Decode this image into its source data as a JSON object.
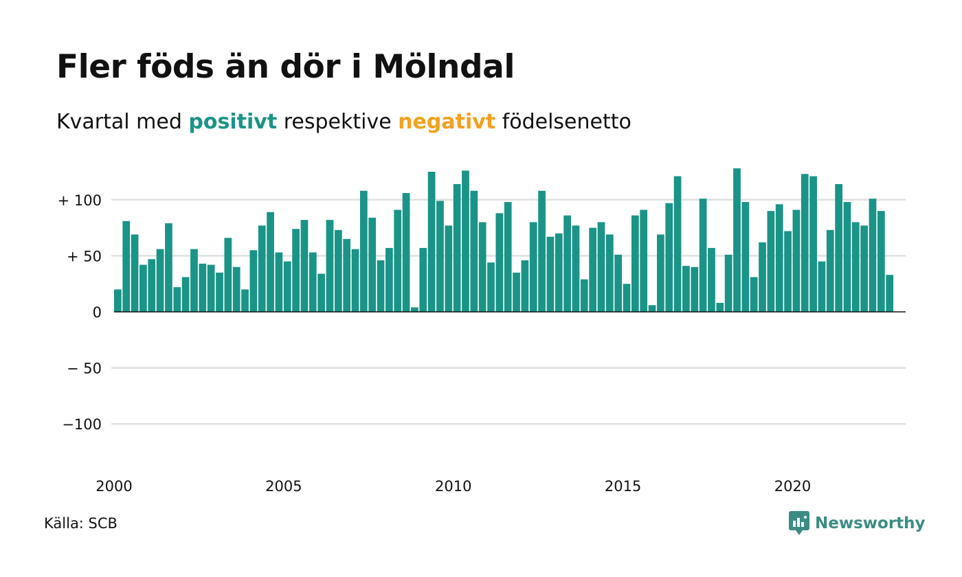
{
  "title": "Fler föds än dör i Mölndal",
  "subtitle": {
    "prefix": "Kvartal med ",
    "positive": "positivt",
    "middle": " respektive ",
    "negative": "negativt",
    "suffix": " födelsenetto"
  },
  "source": "Källa: SCB",
  "brand": {
    "name": "Newsworthy",
    "icon": "newsworthy-logo-icon"
  },
  "colors": {
    "positive": "#1a9487",
    "negative": "#f3a11e",
    "grid": "#e0e0e0",
    "brand": "#3b8c84"
  },
  "chart_data": {
    "type": "bar",
    "x_start": 2000,
    "x_step": 0.25,
    "xlim": [
      2000,
      2023.25
    ],
    "xticks": [
      2000,
      2005,
      2010,
      2015,
      2020
    ],
    "ylim": [
      -120,
      130
    ],
    "yticks": [
      {
        "value": 100,
        "label": "+ 100"
      },
      {
        "value": 50,
        "label": "+  50"
      },
      {
        "value": 0,
        "label": "0"
      },
      {
        "value": -50,
        "label": "− 50"
      },
      {
        "value": -100,
        "label": "−100"
      }
    ],
    "grid": true,
    "values": [
      20,
      81,
      69,
      42,
      47,
      56,
      79,
      22,
      31,
      56,
      43,
      42,
      35,
      66,
      40,
      20,
      55,
      77,
      89,
      53,
      45,
      74,
      82,
      53,
      34,
      82,
      73,
      65,
      56,
      108,
      84,
      46,
      57,
      91,
      106,
      4,
      57,
      125,
      99,
      77,
      114,
      126,
      108,
      80,
      44,
      88,
      98,
      35,
      46,
      80,
      108,
      67,
      70,
      86,
      77,
      29,
      75,
      80,
      69,
      51,
      25,
      86,
      91,
      6,
      69,
      97,
      121,
      41,
      40,
      101,
      57,
      8,
      51,
      128,
      98,
      31,
      62,
      90,
      96,
      72,
      91,
      123,
      121,
      45,
      73,
      114,
      98,
      80,
      77,
      101,
      90,
      33
    ]
  }
}
